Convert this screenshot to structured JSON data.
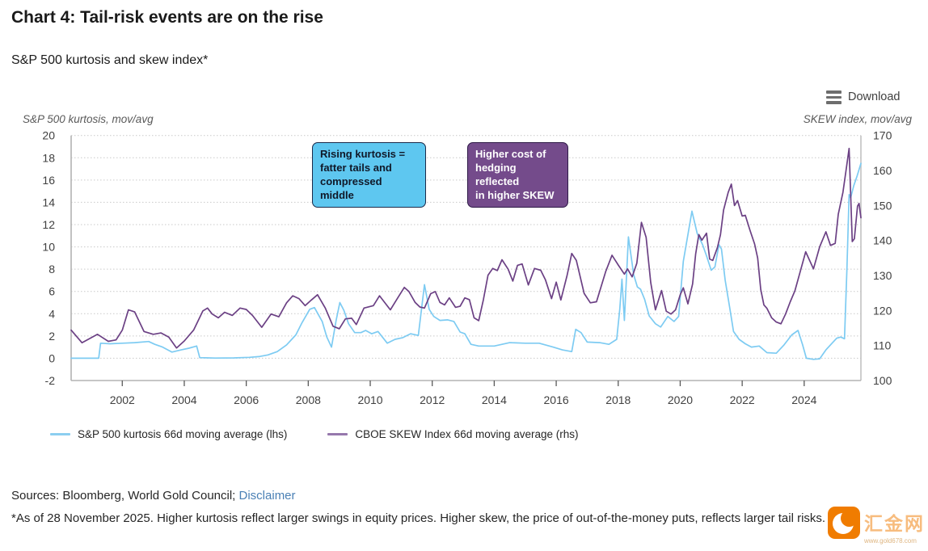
{
  "header": {
    "title": "Chart 4: Tail-risk events are on the rise",
    "subtitle": "S&P 500 kurtosis and skew index*",
    "download_label": "Download"
  },
  "axis_titles": {
    "left": "S&P 500 kurtosis, mov/avg",
    "right": "SKEW index, mov/avg"
  },
  "annotations": [
    {
      "id": "kurtosis-note",
      "text": "Rising kurtosis =\nfatter tails and\ncompressed middle",
      "fill": "#5ec7f0",
      "border": "#1b2a4a",
      "text_color": "#101828"
    },
    {
      "id": "skew-note",
      "text": "Higher cost of\nhedging reflected\nin higher SKEW",
      "fill": "#744b8b",
      "border": "#2e1a47",
      "text_color": "#ffffff"
    }
  ],
  "legend": [
    {
      "label": "S&P 500 kurtosis 66d moving average (lhs)",
      "color": "#8ccef0"
    },
    {
      "label": "CBOE SKEW Index 66d moving average (rhs)",
      "color": "#9678ac"
    }
  ],
  "footer": {
    "sources_prefix": "Sources: Bloomberg, World Gold Council; ",
    "disclaimer_label": "Disclaimer",
    "footnote": "*As of 28 November 2025. Higher kurtosis reflect larger swings in equity prices. Higher skew, the price of out-of-the-money puts, reflects larger tail risks."
  },
  "watermark": {
    "name": "汇金网",
    "url_text": "www.gold678.com",
    "color": "#f07c00"
  },
  "chart_data": {
    "type": "line",
    "title": "S&P 500 kurtosis and skew index",
    "x_axis": {
      "min": 2000.35,
      "max": 2025.83,
      "ticks": [
        2002,
        2004,
        2006,
        2008,
        2010,
        2012,
        2014,
        2016,
        2018,
        2020,
        2022,
        2024
      ]
    },
    "left_axis": {
      "label": "S&P 500 kurtosis, mov/avg",
      "min": -2,
      "max": 20,
      "ticks": [
        20,
        18,
        16,
        14,
        12,
        10,
        8,
        6,
        4,
        2,
        0,
        -2
      ]
    },
    "right_axis": {
      "label": "SKEW index, mov/avg",
      "min": 100,
      "max": 170,
      "ticks": [
        170,
        160,
        150,
        140,
        130,
        120,
        110,
        100
      ]
    },
    "grid": "dotted-horizontal",
    "legend_position": "bottom-left",
    "series": [
      {
        "name": "S&P 500 kurtosis 66d moving average (lhs)",
        "axis": "left",
        "color": "#7dcbf2",
        "points": [
          [
            2000.35,
            0
          ],
          [
            2000.7,
            0
          ],
          [
            2001.1,
            0
          ],
          [
            2001.24,
            0
          ],
          [
            2001.3,
            1.35
          ],
          [
            2001.6,
            1.3
          ],
          [
            2002,
            1.35
          ],
          [
            2002.4,
            1.4
          ],
          [
            2002.85,
            1.5
          ],
          [
            2003.05,
            1.25
          ],
          [
            2003.3,
            1.0
          ],
          [
            2003.6,
            0.55
          ],
          [
            2003.9,
            0.75
          ],
          [
            2004.15,
            0.9
          ],
          [
            2004.4,
            1.1
          ],
          [
            2004.5,
            0.05
          ],
          [
            2005,
            0.02
          ],
          [
            2005.6,
            0.03
          ],
          [
            2006.1,
            0.08
          ],
          [
            2006.4,
            0.15
          ],
          [
            2006.7,
            0.3
          ],
          [
            2007,
            0.6
          ],
          [
            2007.3,
            1.2
          ],
          [
            2007.6,
            2.1
          ],
          [
            2007.8,
            3.2
          ],
          [
            2008.05,
            4.4
          ],
          [
            2008.2,
            4.55
          ],
          [
            2008.45,
            3.3
          ],
          [
            2008.6,
            1.9
          ],
          [
            2008.75,
            1.0
          ],
          [
            2008.9,
            3.4
          ],
          [
            2009.02,
            5.0
          ],
          [
            2009.15,
            4.3
          ],
          [
            2009.3,
            3.1
          ],
          [
            2009.5,
            2.3
          ],
          [
            2009.7,
            2.3
          ],
          [
            2009.85,
            2.5
          ],
          [
            2010.05,
            2.2
          ],
          [
            2010.25,
            2.4
          ],
          [
            2010.55,
            1.35
          ],
          [
            2010.8,
            1.7
          ],
          [
            2011.05,
            1.85
          ],
          [
            2011.3,
            2.2
          ],
          [
            2011.55,
            2.05
          ],
          [
            2011.75,
            6.6
          ],
          [
            2011.9,
            4.4
          ],
          [
            2012.05,
            3.75
          ],
          [
            2012.25,
            3.4
          ],
          [
            2012.5,
            3.45
          ],
          [
            2012.7,
            3.3
          ],
          [
            2012.9,
            2.35
          ],
          [
            2013.05,
            2.2
          ],
          [
            2013.25,
            1.25
          ],
          [
            2013.5,
            1.1
          ],
          [
            2014,
            1.1
          ],
          [
            2014.5,
            1.4
          ],
          [
            2015,
            1.35
          ],
          [
            2015.45,
            1.35
          ],
          [
            2015.9,
            1.0
          ],
          [
            2016.2,
            0.75
          ],
          [
            2016.5,
            0.6
          ],
          [
            2016.63,
            2.6
          ],
          [
            2016.8,
            2.3
          ],
          [
            2017,
            1.45
          ],
          [
            2017.4,
            1.4
          ],
          [
            2017.7,
            1.25
          ],
          [
            2017.95,
            1.7
          ],
          [
            2018.05,
            4.4
          ],
          [
            2018.12,
            7.1
          ],
          [
            2018.2,
            3.4
          ],
          [
            2018.33,
            10.9
          ],
          [
            2018.5,
            7.5
          ],
          [
            2018.62,
            6.4
          ],
          [
            2018.72,
            6.2
          ],
          [
            2018.85,
            5.3
          ],
          [
            2019,
            3.8
          ],
          [
            2019.2,
            3.1
          ],
          [
            2019.37,
            2.8
          ],
          [
            2019.6,
            3.75
          ],
          [
            2019.8,
            3.3
          ],
          [
            2019.95,
            3.75
          ],
          [
            2020.1,
            8.7
          ],
          [
            2020.38,
            13.2
          ],
          [
            2020.55,
            11.2
          ],
          [
            2020.72,
            10.2
          ],
          [
            2020.85,
            9.2
          ],
          [
            2021,
            7.9
          ],
          [
            2021.12,
            8.2
          ],
          [
            2021.25,
            10.2
          ],
          [
            2021.33,
            9.8
          ],
          [
            2021.45,
            7.0
          ],
          [
            2021.6,
            4.5
          ],
          [
            2021.72,
            2.4
          ],
          [
            2021.9,
            1.7
          ],
          [
            2022.1,
            1.3
          ],
          [
            2022.3,
            1.0
          ],
          [
            2022.55,
            1.1
          ],
          [
            2022.8,
            0.5
          ],
          [
            2023.1,
            0.45
          ],
          [
            2023.35,
            1.2
          ],
          [
            2023.6,
            2.1
          ],
          [
            2023.8,
            2.5
          ],
          [
            2023.95,
            1.2
          ],
          [
            2024.07,
            0
          ],
          [
            2024.3,
            -0.1
          ],
          [
            2024.5,
            -0.05
          ],
          [
            2024.7,
            0.75
          ],
          [
            2024.9,
            1.35
          ],
          [
            2025.05,
            1.8
          ],
          [
            2025.18,
            1.9
          ],
          [
            2025.3,
            1.75
          ],
          [
            2025.38,
            8.0
          ],
          [
            2025.45,
            14.7
          ],
          [
            2025.5,
            14.4
          ],
          [
            2025.6,
            15.5
          ],
          [
            2025.7,
            16.3
          ],
          [
            2025.83,
            17.5
          ]
        ]
      },
      {
        "name": "CBOE SKEW Index 66d moving average (rhs)",
        "axis": "right",
        "color": "#6b4084",
        "points": [
          [
            2000.35,
            114.4
          ],
          [
            2000.7,
            110.8
          ],
          [
            2001.2,
            113.2
          ],
          [
            2001.55,
            111.2
          ],
          [
            2001.8,
            111.6
          ],
          [
            2002,
            114.4
          ],
          [
            2002.2,
            120.2
          ],
          [
            2002.4,
            119.6
          ],
          [
            2002.7,
            114.0
          ],
          [
            2003,
            113.2
          ],
          [
            2003.25,
            113.6
          ],
          [
            2003.5,
            112.4
          ],
          [
            2003.75,
            109.3
          ],
          [
            2004,
            111.3
          ],
          [
            2004.3,
            114.4
          ],
          [
            2004.6,
            119.9
          ],
          [
            2004.75,
            120.7
          ],
          [
            2004.9,
            119.0
          ],
          [
            2005.1,
            117.9
          ],
          [
            2005.3,
            119.5
          ],
          [
            2005.55,
            118.6
          ],
          [
            2005.8,
            120.7
          ],
          [
            2006,
            120.3
          ],
          [
            2006.2,
            118.6
          ],
          [
            2006.5,
            115.2
          ],
          [
            2006.8,
            119.0
          ],
          [
            2007.05,
            118.2
          ],
          [
            2007.3,
            122.2
          ],
          [
            2007.5,
            124.2
          ],
          [
            2007.7,
            123.4
          ],
          [
            2007.9,
            121.4
          ],
          [
            2008.1,
            123.0
          ],
          [
            2008.3,
            124.5
          ],
          [
            2008.55,
            120.7
          ],
          [
            2008.8,
            115.5
          ],
          [
            2009,
            114.8
          ],
          [
            2009.2,
            117.6
          ],
          [
            2009.4,
            117.8
          ],
          [
            2009.55,
            116.0
          ],
          [
            2009.8,
            120.7
          ],
          [
            2010.1,
            121.4
          ],
          [
            2010.3,
            124.2
          ],
          [
            2010.5,
            121.9
          ],
          [
            2010.65,
            120.2
          ],
          [
            2010.9,
            123.8
          ],
          [
            2011.1,
            126.6
          ],
          [
            2011.25,
            125.4
          ],
          [
            2011.45,
            122.3
          ],
          [
            2011.6,
            121.0
          ],
          [
            2011.75,
            120.7
          ],
          [
            2011.95,
            124.8
          ],
          [
            2012.1,
            125.4
          ],
          [
            2012.25,
            122.3
          ],
          [
            2012.4,
            121.6
          ],
          [
            2012.55,
            123.6
          ],
          [
            2012.75,
            120.9
          ],
          [
            2012.9,
            121.2
          ],
          [
            2013.05,
            123.6
          ],
          [
            2013.2,
            123.1
          ],
          [
            2013.35,
            117.9
          ],
          [
            2013.5,
            117.1
          ],
          [
            2013.65,
            123.1
          ],
          [
            2013.8,
            130.1
          ],
          [
            2013.95,
            132.0
          ],
          [
            2014.1,
            131.4
          ],
          [
            2014.25,
            134.5
          ],
          [
            2014.45,
            131.8
          ],
          [
            2014.6,
            128.4
          ],
          [
            2014.75,
            132.9
          ],
          [
            2014.9,
            133.3
          ],
          [
            2015.1,
            127.3
          ],
          [
            2015.3,
            132.0
          ],
          [
            2015.5,
            131.5
          ],
          [
            2015.65,
            128.8
          ],
          [
            2015.85,
            123.4
          ],
          [
            2016,
            128.1
          ],
          [
            2016.15,
            123.0
          ],
          [
            2016.35,
            130.0
          ],
          [
            2016.5,
            136.3
          ],
          [
            2016.65,
            134.3
          ],
          [
            2016.9,
            124.9
          ],
          [
            2017.1,
            122.2
          ],
          [
            2017.3,
            122.5
          ],
          [
            2017.6,
            131.2
          ],
          [
            2017.8,
            135.8
          ],
          [
            2018,
            133.0
          ],
          [
            2018.2,
            130.4
          ],
          [
            2018.3,
            131.9
          ],
          [
            2018.45,
            129.6
          ],
          [
            2018.6,
            133.5
          ],
          [
            2018.75,
            145.2
          ],
          [
            2018.9,
            140.9
          ],
          [
            2019.05,
            128.0
          ],
          [
            2019.2,
            120.2
          ],
          [
            2019.4,
            125.7
          ],
          [
            2019.55,
            119.8
          ],
          [
            2019.7,
            119.0
          ],
          [
            2019.85,
            120.2
          ],
          [
            2020,
            124.5
          ],
          [
            2020.1,
            126.5
          ],
          [
            2020.25,
            121.9
          ],
          [
            2020.4,
            127.6
          ],
          [
            2020.5,
            136.2
          ],
          [
            2020.6,
            141.7
          ],
          [
            2020.7,
            140.1
          ],
          [
            2020.85,
            142.1
          ],
          [
            2020.95,
            134.7
          ],
          [
            2021.05,
            134.3
          ],
          [
            2021.2,
            138.0
          ],
          [
            2021.3,
            141.7
          ],
          [
            2021.4,
            148.7
          ],
          [
            2021.55,
            153.8
          ],
          [
            2021.65,
            156.1
          ],
          [
            2021.75,
            150.0
          ],
          [
            2021.85,
            151.4
          ],
          [
            2022,
            147.0
          ],
          [
            2022.1,
            147.2
          ],
          [
            2022.25,
            143.0
          ],
          [
            2022.4,
            139.0
          ],
          [
            2022.5,
            135.0
          ],
          [
            2022.6,
            126.0
          ],
          [
            2022.7,
            121.6
          ],
          [
            2022.8,
            120.6
          ],
          [
            2022.95,
            117.9
          ],
          [
            2023.1,
            116.7
          ],
          [
            2023.25,
            116.2
          ],
          [
            2023.4,
            119.0
          ],
          [
            2023.55,
            122.5
          ],
          [
            2023.7,
            125.6
          ],
          [
            2023.9,
            132.0
          ],
          [
            2024.05,
            136.8
          ],
          [
            2024.3,
            131.9
          ],
          [
            2024.5,
            138.2
          ],
          [
            2024.7,
            142.5
          ],
          [
            2024.85,
            138.6
          ],
          [
            2025,
            139.2
          ],
          [
            2025.1,
            147.5
          ],
          [
            2025.25,
            153.8
          ],
          [
            2025.35,
            160.0
          ],
          [
            2025.45,
            166.3
          ],
          [
            2025.55,
            139.7
          ],
          [
            2025.62,
            140.5
          ],
          [
            2025.72,
            149.8
          ],
          [
            2025.77,
            150.6
          ],
          [
            2025.83,
            146.5
          ]
        ]
      }
    ]
  }
}
